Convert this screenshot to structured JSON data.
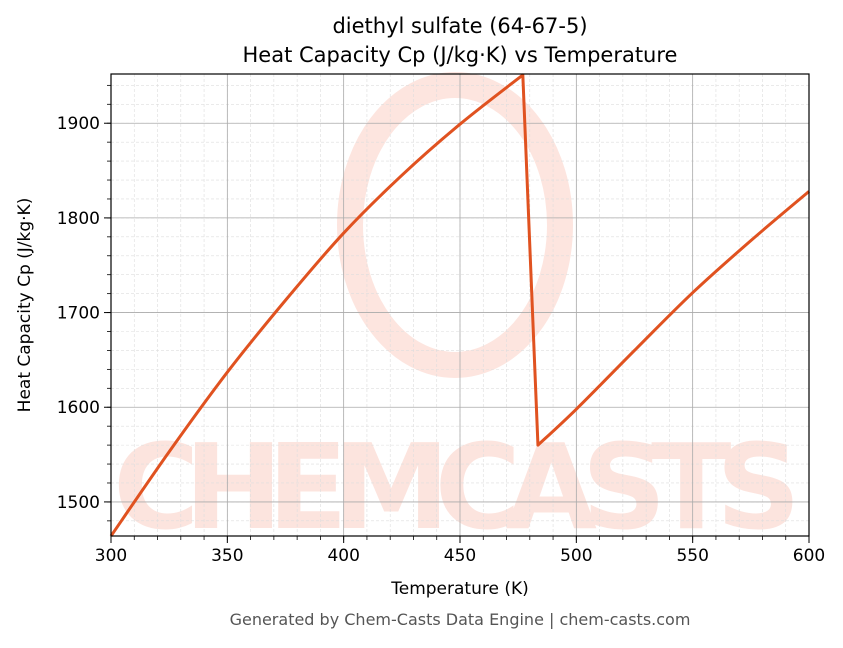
{
  "chart_data": {
    "type": "line",
    "title": "diethyl sulfate (64-67-5)",
    "subtitle": "Heat Capacity Cp (J/kg·K) vs Temperature",
    "xlabel": "Temperature (K)",
    "ylabel": "Heat Capacity Cp (J/kg·K)",
    "xlim": [
      300,
      600
    ],
    "ylim": [
      1464,
      1952
    ],
    "xticks": [
      300,
      350,
      400,
      450,
      500,
      550,
      600
    ],
    "yticks": [
      1500,
      1600,
      1700,
      1800,
      1900
    ],
    "grid": true,
    "series": [
      {
        "name": "Cp",
        "color": "#e05220",
        "x": [
          300,
          325,
          350,
          375,
          400,
          425,
          450,
          477,
          483.5,
          500,
          525,
          550,
          575,
          600
        ],
        "y": [
          1464,
          1553,
          1637,
          1713,
          1784,
          1845,
          1899,
          1951,
          1560,
          1598,
          1660,
          1721,
          1776,
          1828
        ]
      }
    ]
  },
  "watermark": "CHEMCASTS",
  "footer": "Generated by Chem-Casts Data Engine | chem-casts.com"
}
